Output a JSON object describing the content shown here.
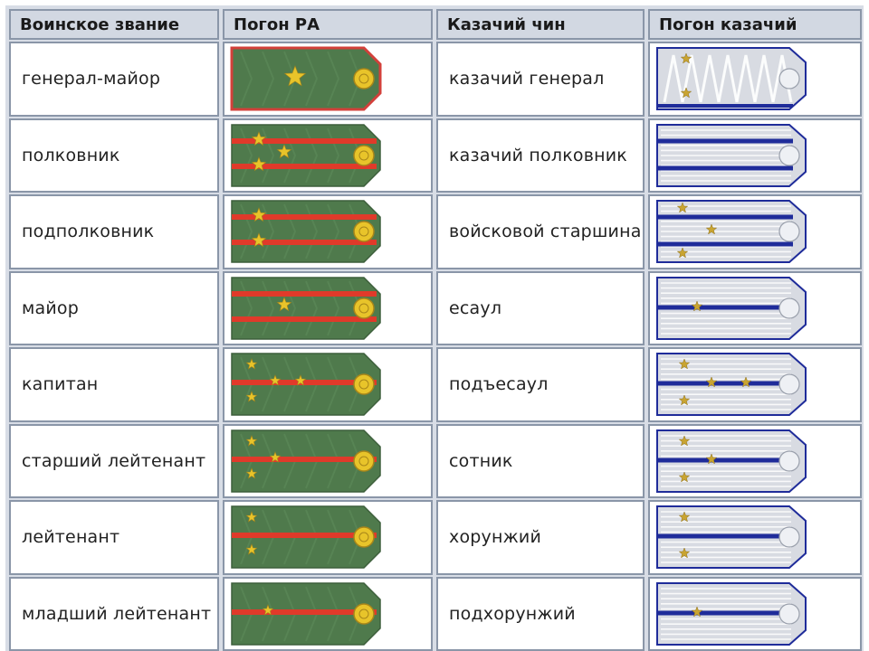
{
  "headers": [
    "Воинское звание",
    "Погон РА",
    "Казачий чин",
    "Погон казачий"
  ],
  "colors": {
    "ra_green": "#4f7a4c",
    "ra_red": "#e03a2a",
    "ra_gold": "#e8c42a",
    "cossack_silver": "#d8dbe2",
    "cossack_blue": "#1f2c9a",
    "cossack_gold": "#c9a431"
  },
  "rows": [
    {
      "army": "генерал-майор",
      "army_board": "general-1-star",
      "cossack": "казачий генерал",
      "cossack_board": "general-2-stars"
    },
    {
      "army": "полковник",
      "army_board": "2-stripes-3-stars",
      "cossack": "казачий полковник",
      "cossack_board": "2-stripes-0-stars"
    },
    {
      "army": "подполковник",
      "army_board": "2-stripes-2-stars",
      "cossack": "войсковой старшина",
      "cossack_board": "2-stripes-3-stars"
    },
    {
      "army": "майор",
      "army_board": "2-stripes-1-star",
      "cossack": "есаул",
      "cossack_board": "1-stripe-0-stars"
    },
    {
      "army": "капитан",
      "army_board": "1-stripe-4-stars",
      "cossack": "подъесаул",
      "cossack_board": "1-stripe-4-stars"
    },
    {
      "army": "старший лейтенант",
      "army_board": "1-stripe-3-stars",
      "cossack": "сотник",
      "cossack_board": "1-stripe-3-stars"
    },
    {
      "army": "лейтенант",
      "army_board": "1-stripe-2-stars",
      "cossack": "хорунжий",
      "cossack_board": "1-stripe-2-stars"
    },
    {
      "army": "младший лейтенант",
      "army_board": "1-stripe-1-star",
      "cossack": "подхорунжий",
      "cossack_board": "1-stripe-1-star"
    }
  ]
}
